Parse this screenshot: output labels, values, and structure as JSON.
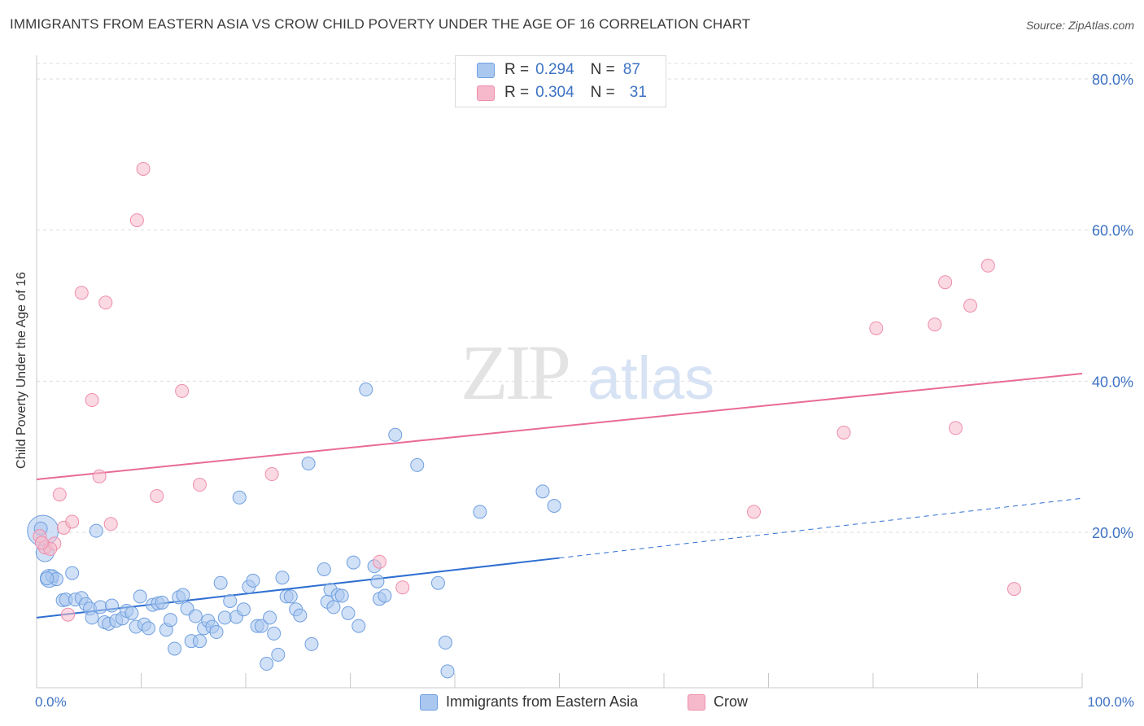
{
  "header": {
    "title": "IMMIGRANTS FROM EASTERN ASIA VS CROW CHILD POVERTY UNDER THE AGE OF 16 CORRELATION CHART",
    "source": "Source: ZipAtlas.com"
  },
  "watermark": {
    "zip": "ZIP",
    "atlas": "atlas"
  },
  "legend_top": [
    {
      "r_key": "R =",
      "r_value": "0.294",
      "n_key": "N =",
      "n_value": "87",
      "color": "#a9c7ef"
    },
    {
      "r_key": "R =",
      "r_value": "0.304",
      "n_key": "N =",
      "n_value": "31",
      "color": "#f6b9cb"
    }
  ],
  "chart_data": {
    "type": "scatter",
    "title": "IMMIGRANTS FROM EASTERN ASIA VS CROW CHILD POVERTY UNDER THE AGE OF 16 CORRELATION CHART",
    "xlabel": "",
    "ylabel": "Child Poverty Under the Age of 16",
    "xlim": [
      0,
      100
    ],
    "ylim": [
      0,
      85
    ],
    "x_tick_labels": [
      "0.0%",
      "100.0%"
    ],
    "y_tick_labels": [
      "80.0%",
      "60.0%",
      "40.0%",
      "20.0%"
    ],
    "y_ticks": [
      80,
      60,
      40,
      20
    ],
    "grid": true,
    "series": [
      {
        "name": "Immigrants from Eastern Asia",
        "color": "#a9c7ef",
        "edge": "#6f9fe0",
        "trend": {
          "x0": 0,
          "y0": 8.7,
          "x1": 50,
          "y1": 16.6,
          "dashed_to": 100,
          "dashed_y": 24.5,
          "color": "#2f6fd1"
        },
        "points": [
          [
            0.6,
            20.2
          ],
          [
            0.8,
            17.3
          ],
          [
            1.2,
            13.9
          ],
          [
            1.5,
            14.2
          ],
          [
            1.9,
            13.8
          ],
          [
            2.5,
            11.0
          ],
          [
            2.8,
            11.1
          ],
          [
            3.4,
            14.6
          ],
          [
            3.7,
            11.1
          ],
          [
            4.3,
            11.3
          ],
          [
            4.7,
            10.5
          ],
          [
            5.1,
            9.9
          ],
          [
            5.3,
            8.7
          ],
          [
            5.7,
            20.2
          ],
          [
            6.1,
            10.1
          ],
          [
            6.5,
            8.1
          ],
          [
            6.9,
            7.9
          ],
          [
            7.2,
            10.3
          ],
          [
            7.6,
            8.3
          ],
          [
            8.2,
            8.6
          ],
          [
            8.6,
            9.6
          ],
          [
            9.1,
            9.3
          ],
          [
            9.5,
            7.5
          ],
          [
            9.9,
            11.5
          ],
          [
            10.3,
            7.8
          ],
          [
            10.7,
            7.3
          ],
          [
            11.1,
            10.4
          ],
          [
            11.6,
            10.6
          ],
          [
            12.0,
            10.7
          ],
          [
            12.4,
            7.1
          ],
          [
            12.8,
            8.4
          ],
          [
            13.2,
            4.6
          ],
          [
            13.6,
            11.4
          ],
          [
            14.0,
            11.7
          ],
          [
            14.4,
            9.9
          ],
          [
            14.8,
            5.6
          ],
          [
            15.2,
            8.9
          ],
          [
            15.6,
            5.6
          ],
          [
            16.0,
            7.3
          ],
          [
            16.4,
            8.3
          ],
          [
            16.8,
            7.5
          ],
          [
            17.2,
            6.8
          ],
          [
            17.6,
            13.3
          ],
          [
            18.0,
            8.7
          ],
          [
            18.5,
            10.9
          ],
          [
            19.1,
            8.8
          ],
          [
            19.4,
            24.6
          ],
          [
            19.8,
            9.8
          ],
          [
            20.3,
            12.8
          ],
          [
            20.7,
            13.6
          ],
          [
            21.1,
            7.6
          ],
          [
            21.5,
            7.6
          ],
          [
            22.0,
            2.6
          ],
          [
            22.3,
            8.7
          ],
          [
            22.7,
            6.6
          ],
          [
            23.1,
            3.8
          ],
          [
            23.5,
            14.0
          ],
          [
            23.9,
            11.5
          ],
          [
            24.3,
            11.5
          ],
          [
            24.8,
            9.8
          ],
          [
            25.2,
            9.0
          ],
          [
            26.0,
            29.1
          ],
          [
            26.3,
            5.2
          ],
          [
            27.5,
            15.1
          ],
          [
            27.8,
            10.8
          ],
          [
            28.1,
            12.4
          ],
          [
            28.4,
            10.1
          ],
          [
            28.8,
            11.7
          ],
          [
            29.2,
            11.6
          ],
          [
            29.8,
            9.3
          ],
          [
            30.3,
            16.0
          ],
          [
            30.8,
            7.6
          ],
          [
            31.5,
            38.9
          ],
          [
            32.3,
            15.5
          ],
          [
            32.6,
            13.5
          ],
          [
            32.8,
            11.2
          ],
          [
            33.3,
            11.6
          ],
          [
            34.3,
            32.9
          ],
          [
            36.4,
            28.9
          ],
          [
            38.4,
            13.3
          ],
          [
            39.1,
            5.4
          ],
          [
            39.3,
            1.6
          ],
          [
            42.4,
            22.7
          ],
          [
            48.4,
            25.4
          ],
          [
            49.5,
            23.5
          ],
          [
            0.4,
            20.5
          ],
          [
            1.0,
            13.9
          ]
        ],
        "sizes": [
          38,
          22,
          22,
          16,
          16,
          16,
          16,
          16,
          16,
          16,
          16,
          16,
          16,
          16,
          16,
          16,
          16,
          16,
          16,
          16,
          16,
          16,
          16,
          16,
          16,
          16,
          16,
          16,
          16,
          16,
          16,
          16,
          16,
          16,
          16,
          16,
          16,
          16,
          16,
          16,
          16,
          16,
          16,
          16,
          16,
          16,
          16,
          16,
          16,
          16,
          16,
          16,
          16,
          16,
          16,
          16,
          16,
          16,
          16,
          16,
          16,
          16,
          16,
          16,
          16,
          16,
          16,
          16,
          16,
          16,
          16,
          16,
          16,
          16,
          16,
          16,
          16,
          16,
          16,
          16,
          16,
          16,
          16,
          16,
          16,
          16,
          16
        ]
      },
      {
        "name": "Crow",
        "color": "#f6b9cb",
        "edge": "#ee8eab",
        "trend": {
          "x0": 0,
          "y0": 27.0,
          "x1": 100,
          "y1": 41.0,
          "color": "#e86b96"
        },
        "points": [
          [
            0.3,
            19.5
          ],
          [
            0.8,
            18.0
          ],
          [
            1.7,
            18.5
          ],
          [
            2.2,
            25.0
          ],
          [
            2.6,
            20.6
          ],
          [
            3.0,
            9.1
          ],
          [
            3.4,
            21.4
          ],
          [
            4.3,
            51.7
          ],
          [
            5.3,
            37.5
          ],
          [
            6.0,
            27.4
          ],
          [
            6.6,
            50.4
          ],
          [
            7.1,
            21.1
          ],
          [
            9.6,
            61.3
          ],
          [
            10.2,
            68.1
          ],
          [
            11.5,
            24.8
          ],
          [
            13.9,
            38.7
          ],
          [
            15.6,
            26.3
          ],
          [
            22.5,
            27.7
          ],
          [
            32.8,
            16.1
          ],
          [
            35.0,
            12.7
          ],
          [
            68.6,
            22.7
          ],
          [
            77.2,
            33.2
          ],
          [
            80.3,
            47.0
          ],
          [
            85.9,
            47.5
          ],
          [
            86.9,
            53.1
          ],
          [
            87.9,
            33.8
          ],
          [
            89.3,
            50.0
          ],
          [
            91.0,
            55.3
          ],
          [
            93.5,
            12.5
          ],
          [
            1.3,
            17.8
          ],
          [
            0.5,
            18.6
          ]
        ]
      }
    ]
  },
  "legend_bottom": [
    {
      "label": "Immigrants from Eastern Asia",
      "color": "#a9c7ef"
    },
    {
      "label": "Crow",
      "color": "#f6b9cb"
    }
  ]
}
